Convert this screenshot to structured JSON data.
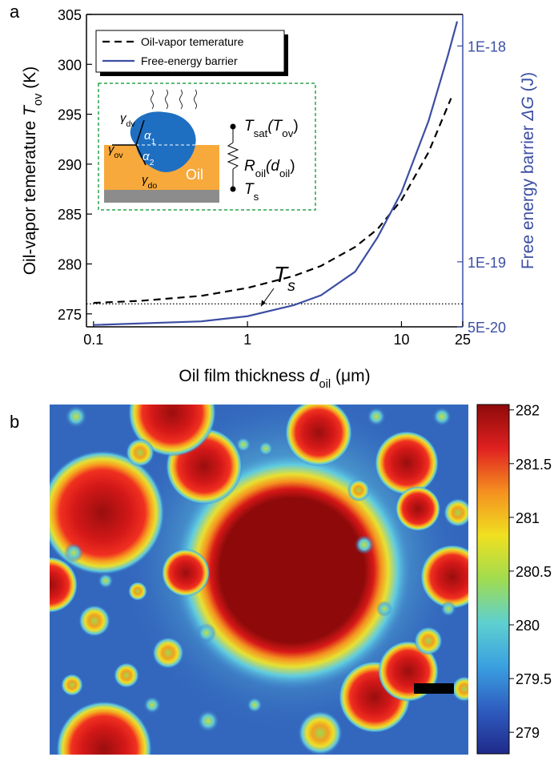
{
  "panel_a": {
    "label": "a"
  },
  "panel_b": {
    "label": "b"
  },
  "chart_data": [
    {
      "type": "line",
      "xlabel": [
        "Oil film thickness ",
        "d",
        "oil",
        " (μm)"
      ],
      "ylabel": [
        "Oil-vapor temerature ",
        "T",
        "ov",
        " (K)"
      ],
      "y2label": [
        "Free energy barrier ",
        "ΔG",
        " (J)"
      ],
      "xscale": "log",
      "y2scale": "log",
      "xlim": [
        0.09,
        25
      ],
      "xticks": [
        0.1,
        1,
        10,
        25
      ],
      "ylim": [
        273.7,
        305
      ],
      "yticks": [
        275,
        280,
        285,
        290,
        295,
        300,
        305
      ],
      "y2lim": [
        5e-20,
        1.4e-18
      ],
      "y2ticks": [
        {
          "value": 5e-20,
          "label": "5E-20"
        },
        {
          "value": 1e-19,
          "label": "1E-19"
        },
        {
          "value": 1e-18,
          "label": "1E-18"
        }
      ],
      "y2color": "#3b4ea3",
      "hline": {
        "value": 276,
        "label": {
          "text": "T",
          "sub": "s"
        }
      },
      "legend": "upper left",
      "series": [
        {
          "name": "Oil-vapor temerature",
          "color": "#000000",
          "dash": true,
          "x": [
            0.1,
            0.2,
            0.5,
            1,
            2,
            3,
            5,
            7,
            10,
            15,
            21
          ],
          "values": [
            276.1,
            276.3,
            276.8,
            277.6,
            278.8,
            279.8,
            281.7,
            283.5,
            286.4,
            291.2,
            296.6
          ]
        },
        {
          "name": "Free-energy barrier",
          "color": "#3b4ea3",
          "dash": false,
          "axis": "y2",
          "x": [
            0.1,
            0.5,
            1,
            2,
            3,
            5,
            7,
            10,
            15,
            20,
            23
          ],
          "values": [
            5.1e-20,
            5.3e-20,
            5.6e-20,
            6.3e-20,
            7e-20,
            9e-20,
            1.3e-19,
            2.1e-19,
            4.5e-19,
            9e-19,
            1.3e-18
          ]
        }
      ],
      "inset": {
        "labels": [
          {
            "text": "γ",
            "sub": "dv"
          },
          {
            "text": "α",
            "sub": "1"
          },
          {
            "text": "γ",
            "sub": "ov"
          },
          {
            "text": "α",
            "sub": "2"
          },
          {
            "text": "γ",
            "sub": "do"
          },
          {
            "text": "Oil",
            "sub": ""
          }
        ],
        "circuit": [
          {
            "text": "T",
            "sub": "sat",
            "rest": "(T",
            "sub2": "ov",
            "end": ")"
          },
          {
            "text": "R",
            "sub": "oil",
            "rest": "(d",
            "sub2": "oil",
            "end": ")"
          },
          {
            "text": "T",
            "sub": "s",
            "rest": "",
            "sub2": "",
            "end": ""
          }
        ]
      }
    },
    {
      "type": "heatmap",
      "clim": [
        278.8,
        282.05
      ],
      "cticks": [
        279,
        279.5,
        280,
        280.5,
        281,
        281.5,
        282
      ],
      "colormap": [
        "#1f2a8a",
        "#2f5cc0",
        "#3aa0e0",
        "#5ed0d0",
        "#a0dc50",
        "#f0e020",
        "#f59020",
        "#e02020",
        "#8e0a0a"
      ]
    }
  ]
}
